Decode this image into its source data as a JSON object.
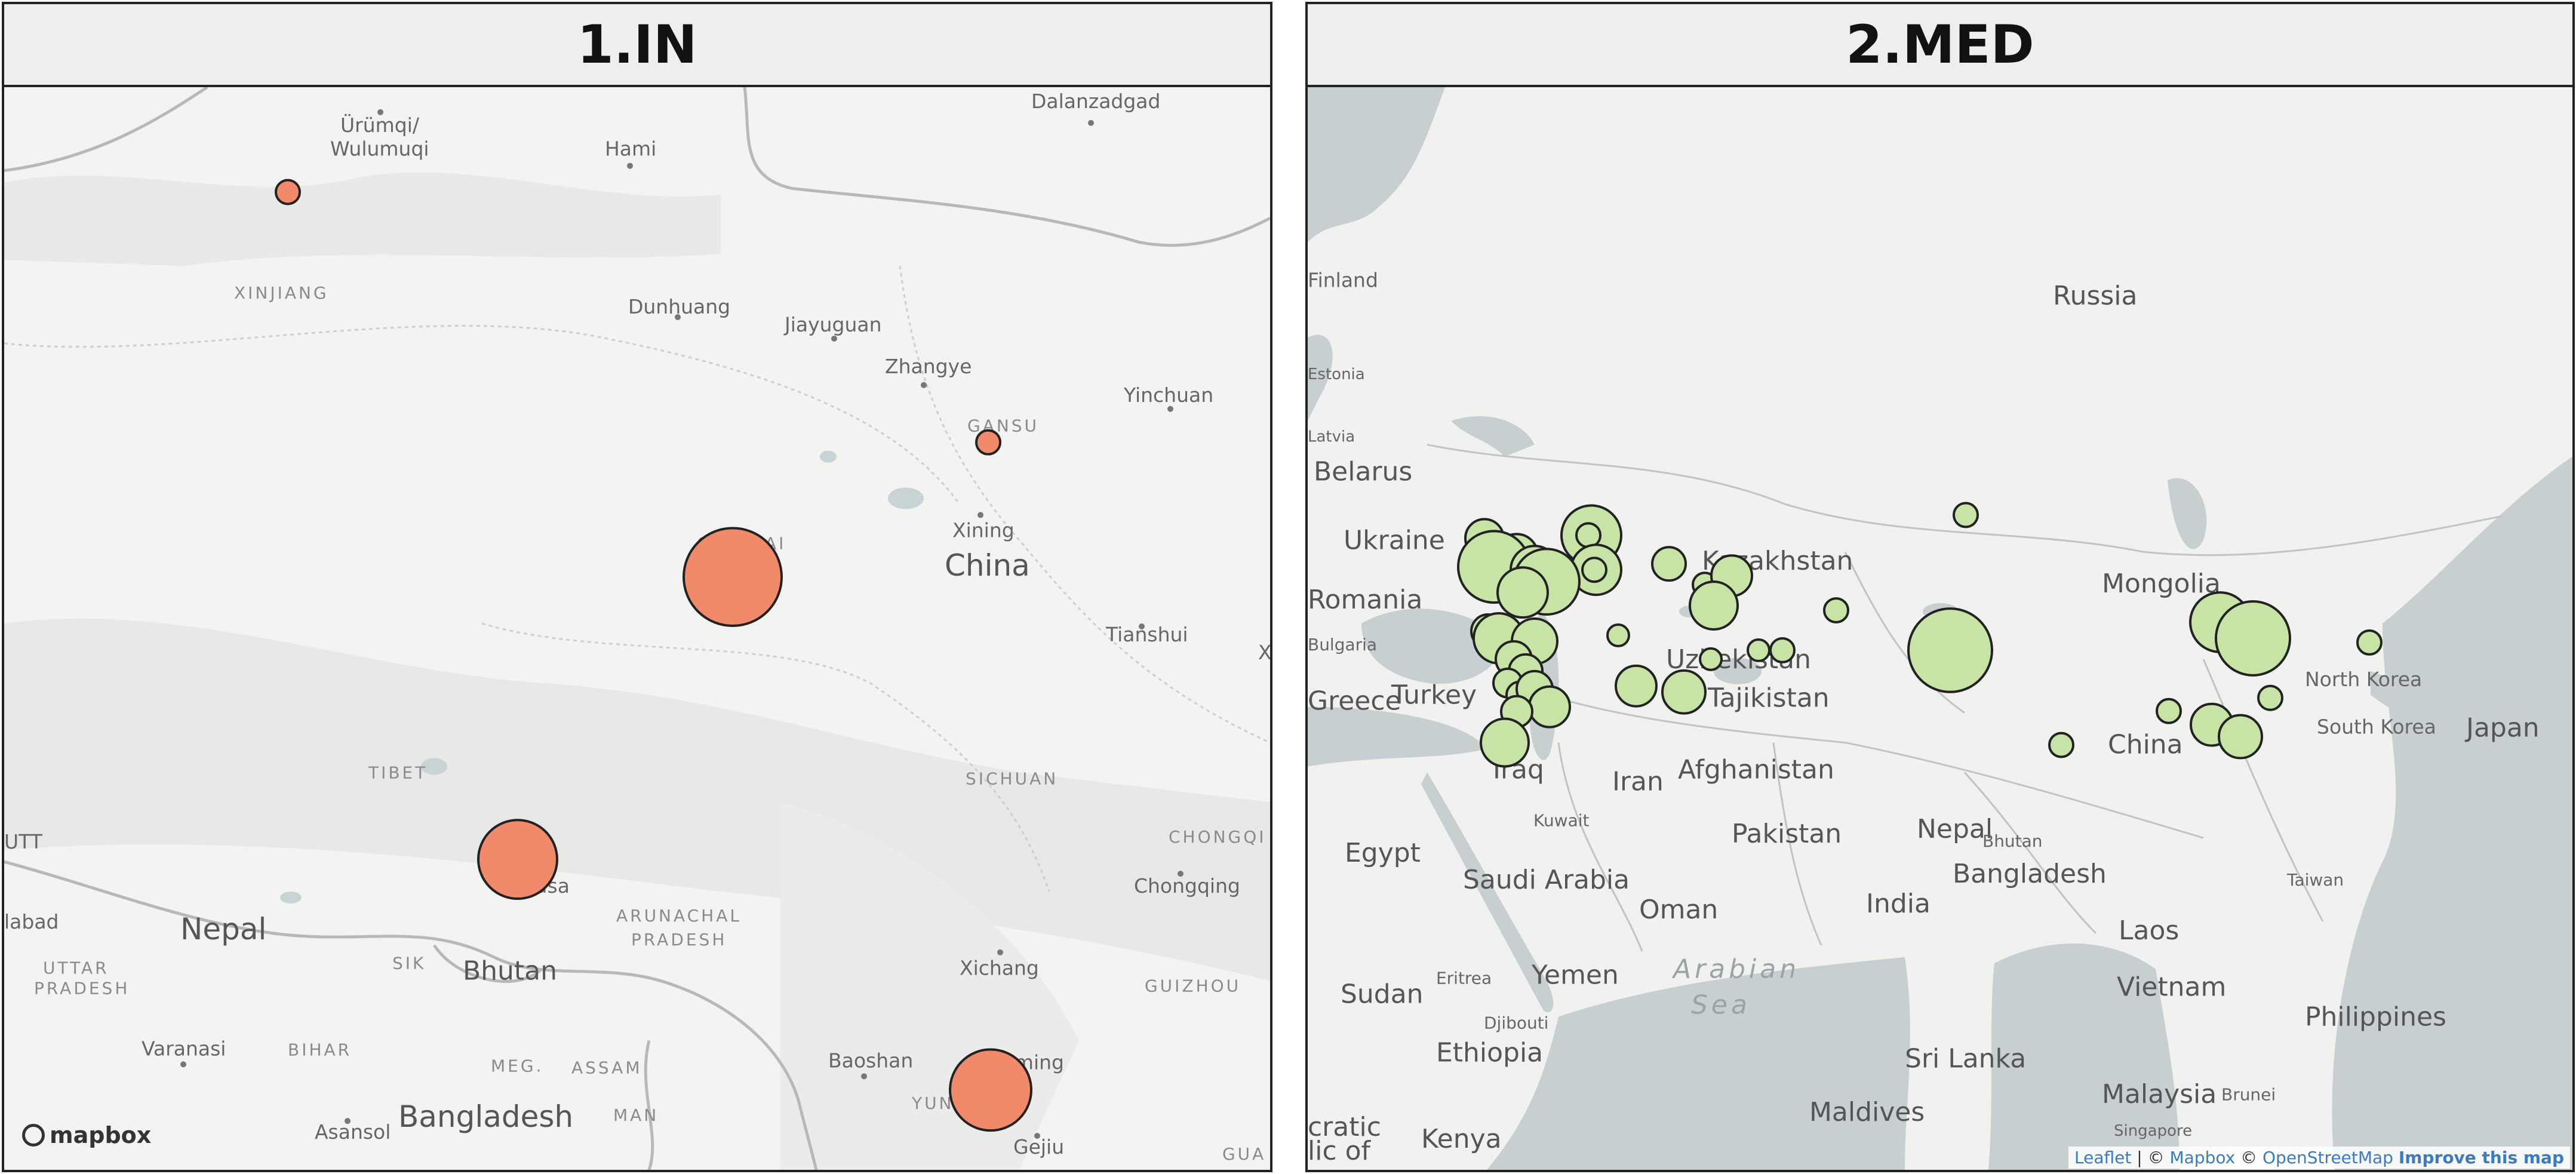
{
  "panels": [
    {
      "title": "1.IN",
      "marker_color": "#f08a6a",
      "countries": [
        "China",
        "Nepal",
        "Bhutan",
        "Bangladesh"
      ],
      "regions": [
        "XINJIANG",
        "GANSU",
        "QINGHAI",
        "TIBET",
        "SICHUAN",
        "CHONGQI",
        "ARUNACHAL",
        "PRADESH",
        "UTTAR",
        "PRADESH",
        "BIHAR",
        "ASSAM",
        "MEG.",
        "MAN",
        "YUNNAN",
        "GUIZHOU",
        "SIK",
        "GUA"
      ],
      "cities": [
        "Ürümqi/",
        "Wulumuqi",
        "Hami",
        "Dalanzadgad",
        "Dunhuang",
        "Jiayuguan",
        "Zhangye",
        "Yinchuan",
        "Xining",
        "Tianshui",
        "Lhasa",
        "Xichang",
        "Chongqing",
        "Baoshan",
        "Kunming",
        "Gejiu",
        "Varanasi",
        "Asansol",
        "UTT",
        "labad",
        "X"
      ],
      "markers": [
        {
          "name": "xinjiang-marker",
          "size": 1
        },
        {
          "name": "gansu-marker",
          "size": 1
        },
        {
          "name": "qinghai-marker",
          "size": 5
        },
        {
          "name": "lhasa-marker",
          "size": 4
        },
        {
          "name": "kunming-marker",
          "size": 4
        }
      ],
      "logo": "mapbox"
    },
    {
      "title": "2.MED",
      "marker_color": "#c8e3a6",
      "countries": [
        "Russia",
        "Finland",
        "Estonia",
        "Latvia",
        "Belarus",
        "Ukraine",
        "Romania",
        "Bulgaria",
        "Greece",
        "Turkey",
        "Kazakhstan",
        "Uzbekistan",
        "Tajikistan",
        "Afghanistan",
        "Mongolia",
        "China",
        "North Korea",
        "South Korea",
        "Japan",
        "Iran",
        "Iraq",
        "Kuwait",
        "Egypt",
        "Saudi Arabia",
        "Oman",
        "Yemen",
        "Eritrea",
        "Djibouti",
        "Sudan",
        "Ethiopia",
        "Pakistan",
        "Nepal",
        "Bhutan",
        "Bangladesh",
        "India",
        "Taiwan",
        "Laos",
        "Vietnam",
        "Philippines",
        "Sri Lanka",
        "Malaysia",
        "Brunei",
        "Singapore",
        "Maldives",
        "Kenya",
        "cratic",
        "lic of"
      ],
      "seas": [
        "Arabian",
        "Sea"
      ],
      "markers_count": 38,
      "attribution": {
        "leaflet": "Leaflet",
        "sep": " | © ",
        "mapbox": "Mapbox",
        "copy2": " © ",
        "osm": "OpenStreetMap",
        "improve": "Improve this map"
      }
    }
  ]
}
